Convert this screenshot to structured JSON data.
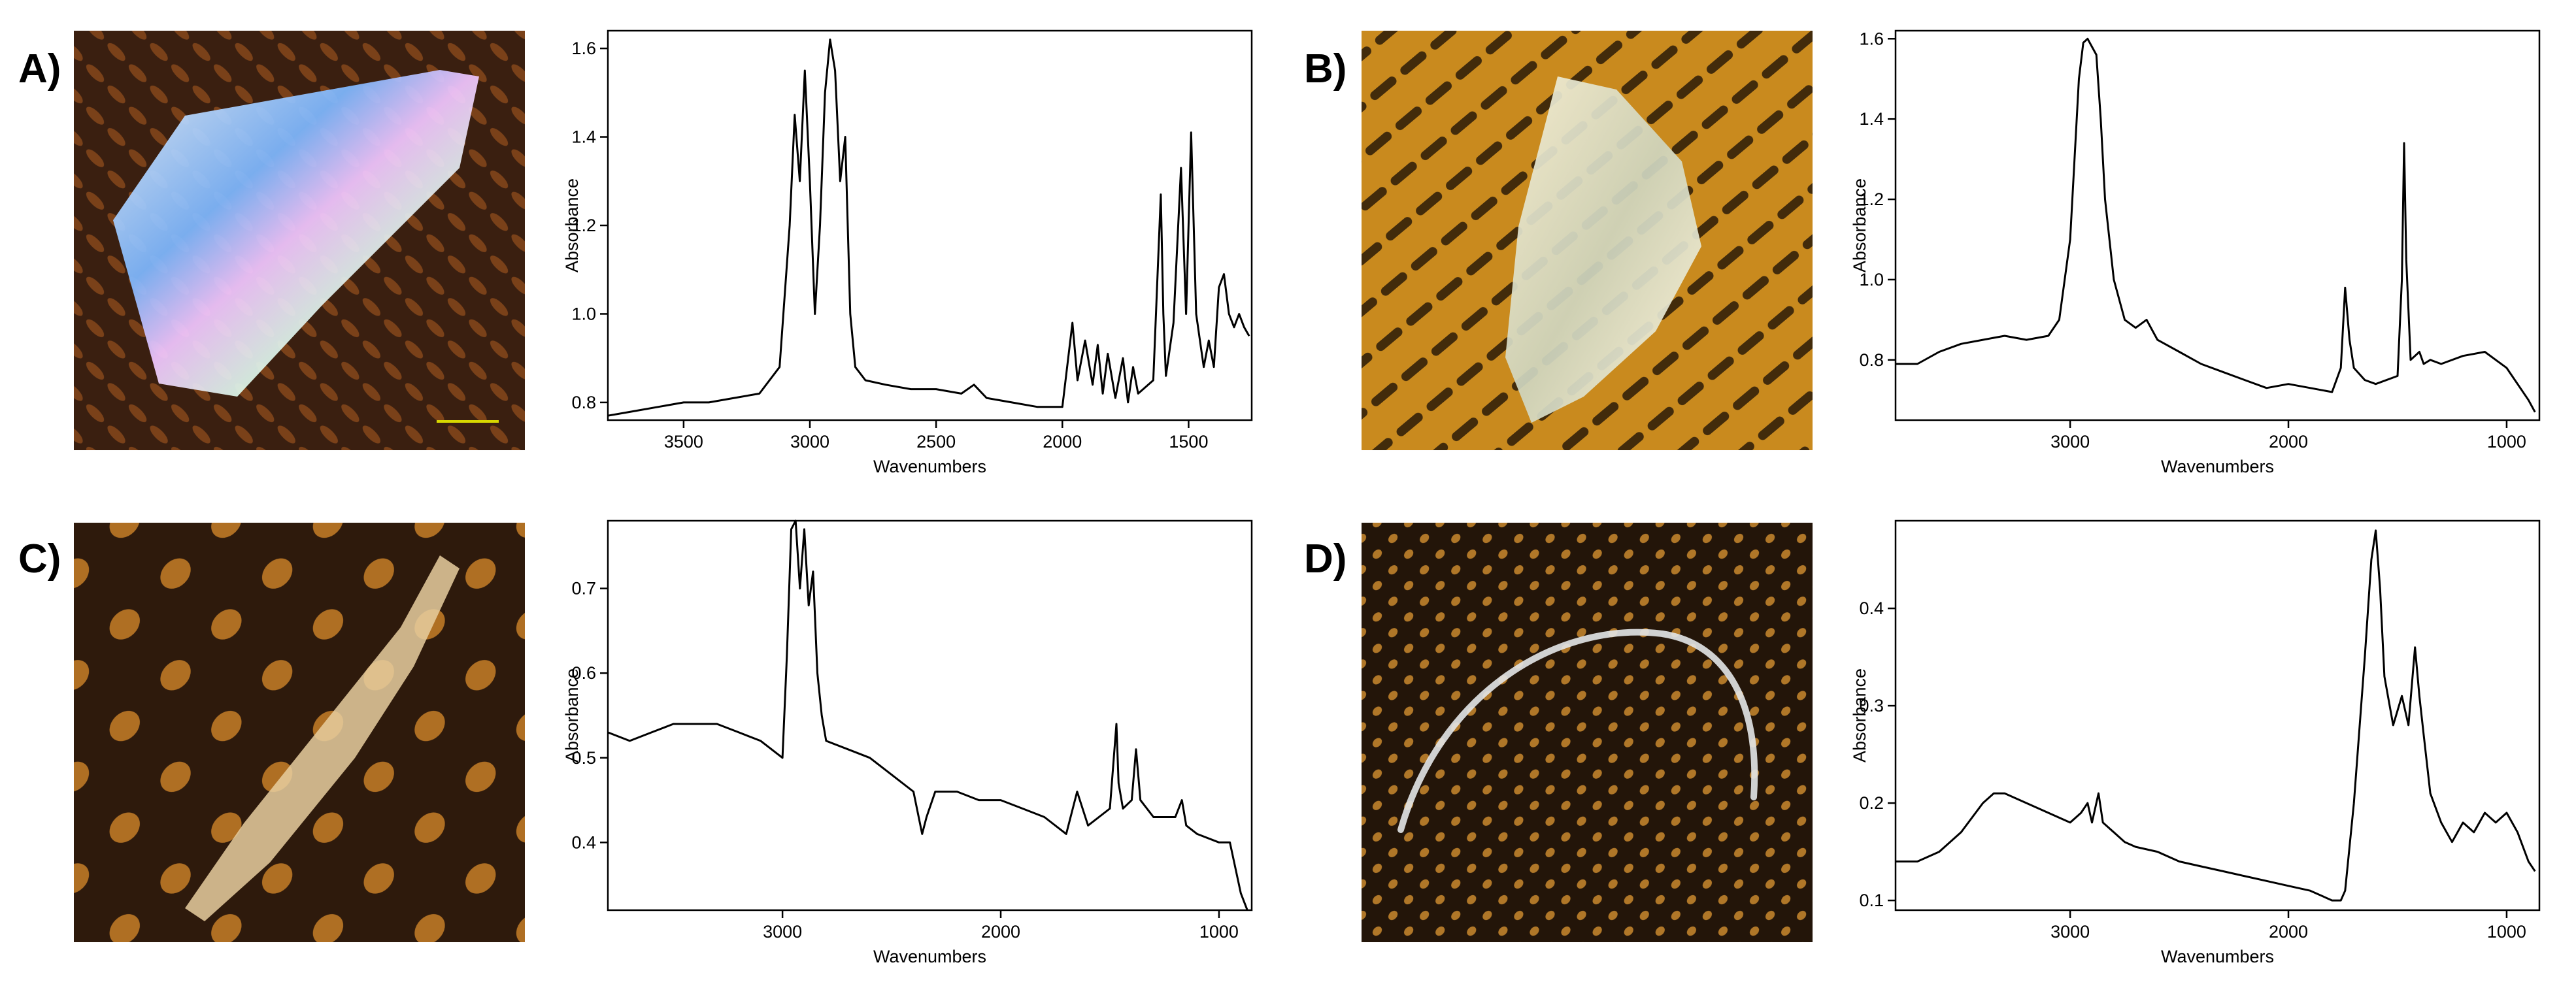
{
  "panel_labels": [
    "A)",
    "B)",
    "C)",
    "D)"
  ],
  "photos": [
    {
      "subject": "particle-fragment",
      "background": "#3a1f10",
      "accent": "#8a4a1c"
    },
    {
      "subject": "particle-fragment",
      "background": "#c98a1e",
      "accent": "#f2b73a"
    },
    {
      "subject": "particle-fragment",
      "background": "#2e1a0c",
      "accent": "#d98a2a"
    },
    {
      "subject": "fiber-strand",
      "background": "#231509",
      "accent": "#c9892e"
    }
  ],
  "chart_data": [
    {
      "type": "line",
      "panel": "A)",
      "xlabel": "Wavenumbers",
      "ylabel": "Absorbance",
      "xlim": [
        3800,
        1250
      ],
      "ylim": [
        0.76,
        1.64
      ],
      "xticks": [
        3500,
        3000,
        2500,
        2000,
        1500
      ],
      "xtick_labels": [
        "3500",
        "3000",
        "2500",
        "2000",
        "1500"
      ],
      "yticks": [
        0.8,
        1.0,
        1.2,
        1.4,
        1.6
      ],
      "ytick_labels": [
        "0.8",
        "1.0",
        "1.2",
        "1.4",
        "1.6"
      ],
      "series": [
        {
          "name": "spectrum",
          "x": [
            3800,
            3700,
            3600,
            3500,
            3400,
            3300,
            3200,
            3120,
            3080,
            3060,
            3040,
            3020,
            3000,
            2980,
            2960,
            2940,
            2920,
            2900,
            2880,
            2860,
            2840,
            2820,
            2780,
            2700,
            2600,
            2500,
            2400,
            2350,
            2300,
            2200,
            2100,
            2000,
            1960,
            1940,
            1910,
            1880,
            1860,
            1840,
            1820,
            1790,
            1760,
            1740,
            1720,
            1700,
            1680,
            1640,
            1610,
            1600,
            1590,
            1560,
            1530,
            1510,
            1490,
            1470,
            1450,
            1440,
            1420,
            1400,
            1380,
            1360,
            1340,
            1320,
            1300,
            1280,
            1260
          ],
          "y": [
            0.77,
            0.78,
            0.79,
            0.8,
            0.8,
            0.81,
            0.82,
            0.88,
            1.2,
            1.45,
            1.3,
            1.55,
            1.3,
            1.0,
            1.2,
            1.5,
            1.62,
            1.55,
            1.3,
            1.4,
            1.0,
            0.88,
            0.85,
            0.84,
            0.83,
            0.83,
            0.82,
            0.84,
            0.81,
            0.8,
            0.79,
            0.79,
            0.98,
            0.85,
            0.94,
            0.84,
            0.93,
            0.82,
            0.91,
            0.81,
            0.9,
            0.8,
            0.88,
            0.82,
            0.83,
            0.85,
            1.27,
            1.0,
            0.86,
            0.98,
            1.33,
            1.0,
            1.41,
            1.0,
            0.92,
            0.88,
            0.94,
            0.88,
            1.06,
            1.09,
            1.0,
            0.97,
            1.0,
            0.97,
            0.95
          ]
        }
      ]
    },
    {
      "type": "line",
      "panel": "B)",
      "xlabel": "Wavenumbers",
      "ylabel": "Absorbance",
      "xlim": [
        3800,
        850
      ],
      "ylim": [
        0.65,
        1.62
      ],
      "xticks": [
        3000,
        2000,
        1000
      ],
      "xtick_labels": [
        "3000",
        "2000",
        "1000"
      ],
      "yticks": [
        0.8,
        1.0,
        1.2,
        1.4,
        1.6
      ],
      "ytick_labels": [
        "0.8",
        "1.0",
        "1.2",
        "1.4",
        "1.6"
      ],
      "series": [
        {
          "name": "spectrum",
          "x": [
            3800,
            3700,
            3600,
            3500,
            3400,
            3300,
            3200,
            3100,
            3050,
            3000,
            2980,
            2960,
            2940,
            2920,
            2900,
            2880,
            2860,
            2840,
            2800,
            2750,
            2700,
            2650,
            2600,
            2500,
            2400,
            2300,
            2200,
            2100,
            2000,
            1900,
            1800,
            1760,
            1740,
            1720,
            1700,
            1650,
            1600,
            1500,
            1480,
            1470,
            1460,
            1440,
            1400,
            1380,
            1350,
            1300,
            1200,
            1100,
            1050,
            1000,
            950,
            900,
            870
          ],
          "y": [
            0.79,
            0.79,
            0.82,
            0.84,
            0.85,
            0.86,
            0.85,
            0.86,
            0.9,
            1.1,
            1.3,
            1.5,
            1.59,
            1.6,
            1.58,
            1.56,
            1.4,
            1.2,
            1.0,
            0.9,
            0.88,
            0.9,
            0.85,
            0.82,
            0.79,
            0.77,
            0.75,
            0.73,
            0.74,
            0.73,
            0.72,
            0.78,
            0.98,
            0.85,
            0.78,
            0.75,
            0.74,
            0.76,
            1.0,
            1.34,
            1.05,
            0.8,
            0.82,
            0.79,
            0.8,
            0.79,
            0.81,
            0.82,
            0.8,
            0.78,
            0.74,
            0.7,
            0.67
          ]
        }
      ]
    },
    {
      "type": "line",
      "panel": "C)",
      "xlabel": "Wavenumbers",
      "ylabel": "Absorbance",
      "xlim": [
        3800,
        850
      ],
      "ylim": [
        0.32,
        0.78
      ],
      "xticks": [
        3000,
        2000,
        1000
      ],
      "xtick_labels": [
        "3000",
        "2000",
        "1000"
      ],
      "yticks": [
        0.4,
        0.5,
        0.6,
        0.7
      ],
      "ytick_labels": [
        "0.4",
        "0.5",
        "0.6",
        "0.7"
      ],
      "series": [
        {
          "name": "spectrum",
          "x": [
            3800,
            3700,
            3600,
            3500,
            3400,
            3300,
            3200,
            3100,
            3000,
            2980,
            2960,
            2940,
            2920,
            2900,
            2880,
            2860,
            2840,
            2820,
            2800,
            2700,
            2600,
            2500,
            2400,
            2360,
            2340,
            2300,
            2200,
            2100,
            2000,
            1900,
            1800,
            1700,
            1650,
            1600,
            1500,
            1470,
            1460,
            1440,
            1400,
            1380,
            1360,
            1300,
            1200,
            1170,
            1150,
            1100,
            1000,
            950,
            900,
            870
          ],
          "y": [
            0.53,
            0.52,
            0.53,
            0.54,
            0.54,
            0.54,
            0.53,
            0.52,
            0.5,
            0.62,
            0.77,
            0.78,
            0.7,
            0.77,
            0.68,
            0.72,
            0.6,
            0.55,
            0.52,
            0.51,
            0.5,
            0.48,
            0.46,
            0.41,
            0.43,
            0.46,
            0.46,
            0.45,
            0.45,
            0.44,
            0.43,
            0.41,
            0.46,
            0.42,
            0.44,
            0.54,
            0.47,
            0.44,
            0.45,
            0.51,
            0.45,
            0.43,
            0.43,
            0.45,
            0.42,
            0.41,
            0.4,
            0.4,
            0.34,
            0.32
          ]
        }
      ]
    },
    {
      "type": "line",
      "panel": "D)",
      "xlabel": "Wavenumbers",
      "ylabel": "Absorbance",
      "xlim": [
        3800,
        850
      ],
      "ylim": [
        0.09,
        0.49
      ],
      "xticks": [
        3000,
        2000,
        1000
      ],
      "xtick_labels": [
        "3000",
        "2000",
        "1000"
      ],
      "yticks": [
        0.1,
        0.2,
        0.3,
        0.4
      ],
      "ytick_labels": [
        "0.1",
        "0.2",
        "0.3",
        "0.4"
      ],
      "series": [
        {
          "name": "spectrum",
          "x": [
            3800,
            3700,
            3600,
            3500,
            3400,
            3350,
            3300,
            3200,
            3100,
            3000,
            2950,
            2920,
            2900,
            2870,
            2850,
            2800,
            2750,
            2700,
            2600,
            2500,
            2400,
            2300,
            2200,
            2100,
            2000,
            1900,
            1800,
            1760,
            1740,
            1700,
            1650,
            1620,
            1600,
            1580,
            1560,
            1520,
            1480,
            1450,
            1420,
            1400,
            1380,
            1350,
            1300,
            1250,
            1200,
            1150,
            1100,
            1050,
            1000,
            950,
            900,
            870
          ],
          "y": [
            0.14,
            0.14,
            0.15,
            0.17,
            0.2,
            0.21,
            0.21,
            0.2,
            0.19,
            0.18,
            0.19,
            0.2,
            0.18,
            0.21,
            0.18,
            0.17,
            0.16,
            0.155,
            0.15,
            0.14,
            0.135,
            0.13,
            0.125,
            0.12,
            0.115,
            0.11,
            0.1,
            0.1,
            0.11,
            0.2,
            0.35,
            0.45,
            0.48,
            0.42,
            0.33,
            0.28,
            0.31,
            0.28,
            0.36,
            0.31,
            0.27,
            0.21,
            0.18,
            0.16,
            0.18,
            0.17,
            0.19,
            0.18,
            0.19,
            0.17,
            0.14,
            0.13
          ]
        }
      ]
    }
  ]
}
